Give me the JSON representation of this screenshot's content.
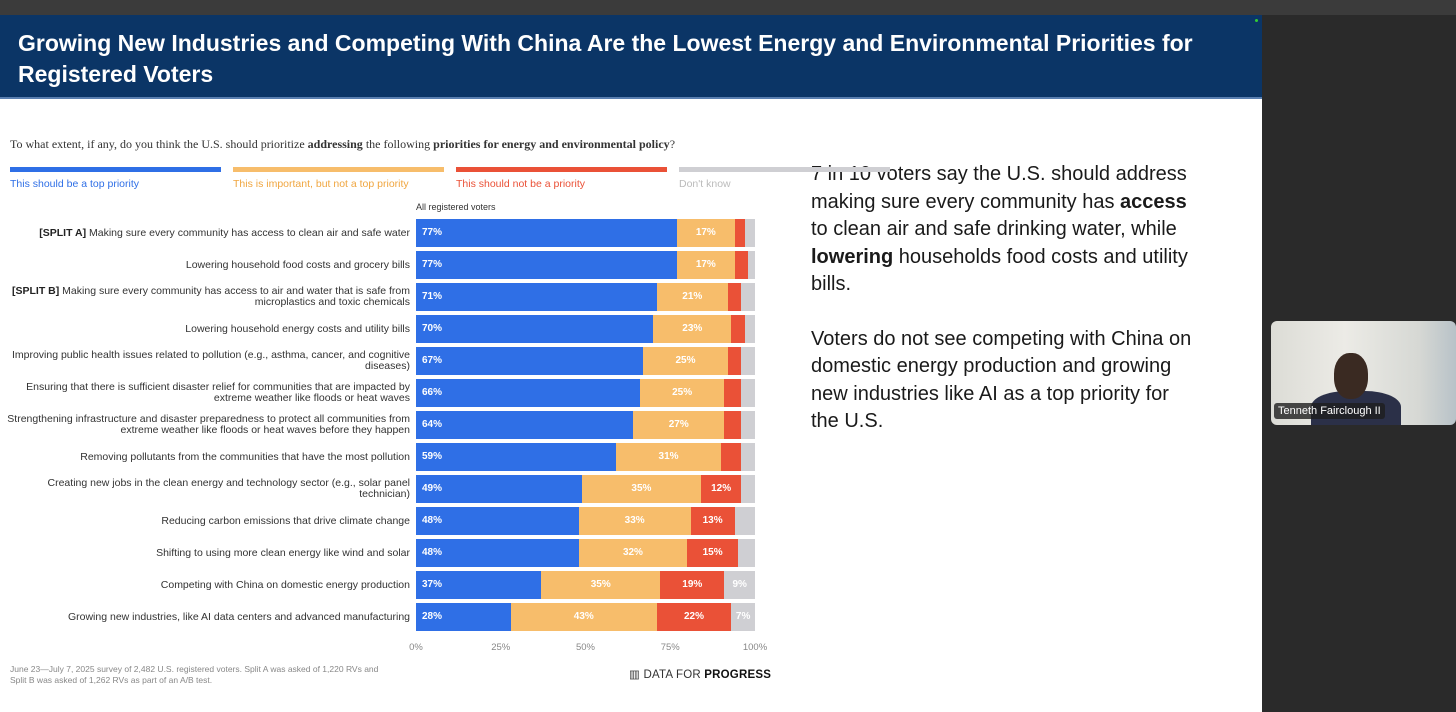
{
  "slide": {
    "title": "Growing New Industries and Competing With China Are the Lowest Energy and Environmental Priorities for Registered Voters",
    "question_pre": "To what extent, if any, do you think the U.S. should prioritize ",
    "question_b1": "addressing",
    "question_mid": " the following ",
    "question_b2": "priorities for energy and environmental policy",
    "question_end": "?",
    "subhead": "All registered voters",
    "footnote": "June 23—July 7, 2025 survey of 2,482 U.S. registered voters. Split A was asked of 1,220 RVs and Split B was asked of 1,262 RVs as part of an A/B test.",
    "brand_a": "DATA FOR ",
    "brand_b": "PROGRESS",
    "insight1_a": "7 in 10 voters say the U.S. should address making sure every community has ",
    "insight1_b": "access",
    "insight1_c": " to clean air and safe drinking water, while ",
    "insight1_d": "lowering",
    "insight1_e": " households food costs and utility bills.",
    "insight2": "Voters do not see competing with China on domestic energy production and growing new industries like AI as a top priority for the U.S."
  },
  "video": {
    "participant_name": "Tenneth Fairclough II"
  },
  "chart_data": {
    "type": "bar",
    "orientation": "horizontal-stacked",
    "xlim": [
      0,
      100
    ],
    "xticks": [
      "0%",
      "25%",
      "50%",
      "75%",
      "100%"
    ],
    "series": [
      {
        "name": "This should be a top priority",
        "color": "#2f6fe6"
      },
      {
        "name": "This is important, but not a top priority",
        "color": "#f7bd6b"
      },
      {
        "name": "This should not be a priority",
        "color": "#ea5137"
      },
      {
        "name": "Don't know",
        "color": "#cfcfd3"
      }
    ],
    "rows": [
      {
        "prefix": "[SPLIT A]",
        "label": " Making sure every community has access to clean air and safe water",
        "values": [
          77,
          17,
          3,
          3
        ],
        "labels": [
          "77%",
          "17%",
          "",
          ""
        ]
      },
      {
        "prefix": "",
        "label": "Lowering household food costs and grocery bills",
        "values": [
          77,
          17,
          4,
          2
        ],
        "labels": [
          "77%",
          "17%",
          "",
          ""
        ]
      },
      {
        "prefix": "[SPLIT B]",
        "label": " Making sure every community has access to air and water that is safe from microplastics and toxic chemicals",
        "values": [
          71,
          21,
          4,
          4
        ],
        "labels": [
          "71%",
          "21%",
          "",
          ""
        ]
      },
      {
        "prefix": "",
        "label": "Lowering household energy costs and utility bills",
        "values": [
          70,
          23,
          4,
          3
        ],
        "labels": [
          "70%",
          "23%",
          "",
          ""
        ]
      },
      {
        "prefix": "",
        "label": "Improving public health issues related to pollution (e.g., asthma, cancer, and cognitive diseases)",
        "values": [
          67,
          25,
          4,
          4
        ],
        "labels": [
          "67%",
          "25%",
          "",
          ""
        ]
      },
      {
        "prefix": "",
        "label": "Ensuring that there is sufficient disaster relief for communities that are impacted by extreme weather like floods or heat waves",
        "values": [
          66,
          25,
          5,
          4
        ],
        "labels": [
          "66%",
          "25%",
          "",
          ""
        ]
      },
      {
        "prefix": "",
        "label": "Strengthening infrastructure and disaster preparedness to protect all communities from extreme weather like floods or heat waves before they happen",
        "values": [
          64,
          27,
          5,
          4
        ],
        "labels": [
          "64%",
          "27%",
          "",
          ""
        ]
      },
      {
        "prefix": "",
        "label": "Removing pollutants from the communities that have the most pollution",
        "values": [
          59,
          31,
          6,
          4
        ],
        "labels": [
          "59%",
          "31%",
          "",
          ""
        ]
      },
      {
        "prefix": "",
        "label": "Creating new jobs in the clean energy and technology sector (e.g., solar panel technician)",
        "values": [
          49,
          35,
          12,
          4
        ],
        "labels": [
          "49%",
          "35%",
          "12%",
          ""
        ]
      },
      {
        "prefix": "",
        "label": "Reducing carbon emissions that drive climate change",
        "values": [
          48,
          33,
          13,
          6
        ],
        "labels": [
          "48%",
          "33%",
          "13%",
          ""
        ]
      },
      {
        "prefix": "",
        "label": "Shifting to using more clean energy like wind and solar",
        "values": [
          48,
          32,
          15,
          5
        ],
        "labels": [
          "48%",
          "32%",
          "15%",
          ""
        ]
      },
      {
        "prefix": "",
        "label": "Competing with China on domestic energy production",
        "values": [
          37,
          35,
          19,
          9
        ],
        "labels": [
          "37%",
          "35%",
          "19%",
          "9%"
        ]
      },
      {
        "prefix": "",
        "label": "Growing new industries, like AI data centers and advanced manufacturing",
        "values": [
          28,
          43,
          22,
          7
        ],
        "labels": [
          "28%",
          "43%",
          "22%",
          "7%"
        ]
      }
    ]
  }
}
